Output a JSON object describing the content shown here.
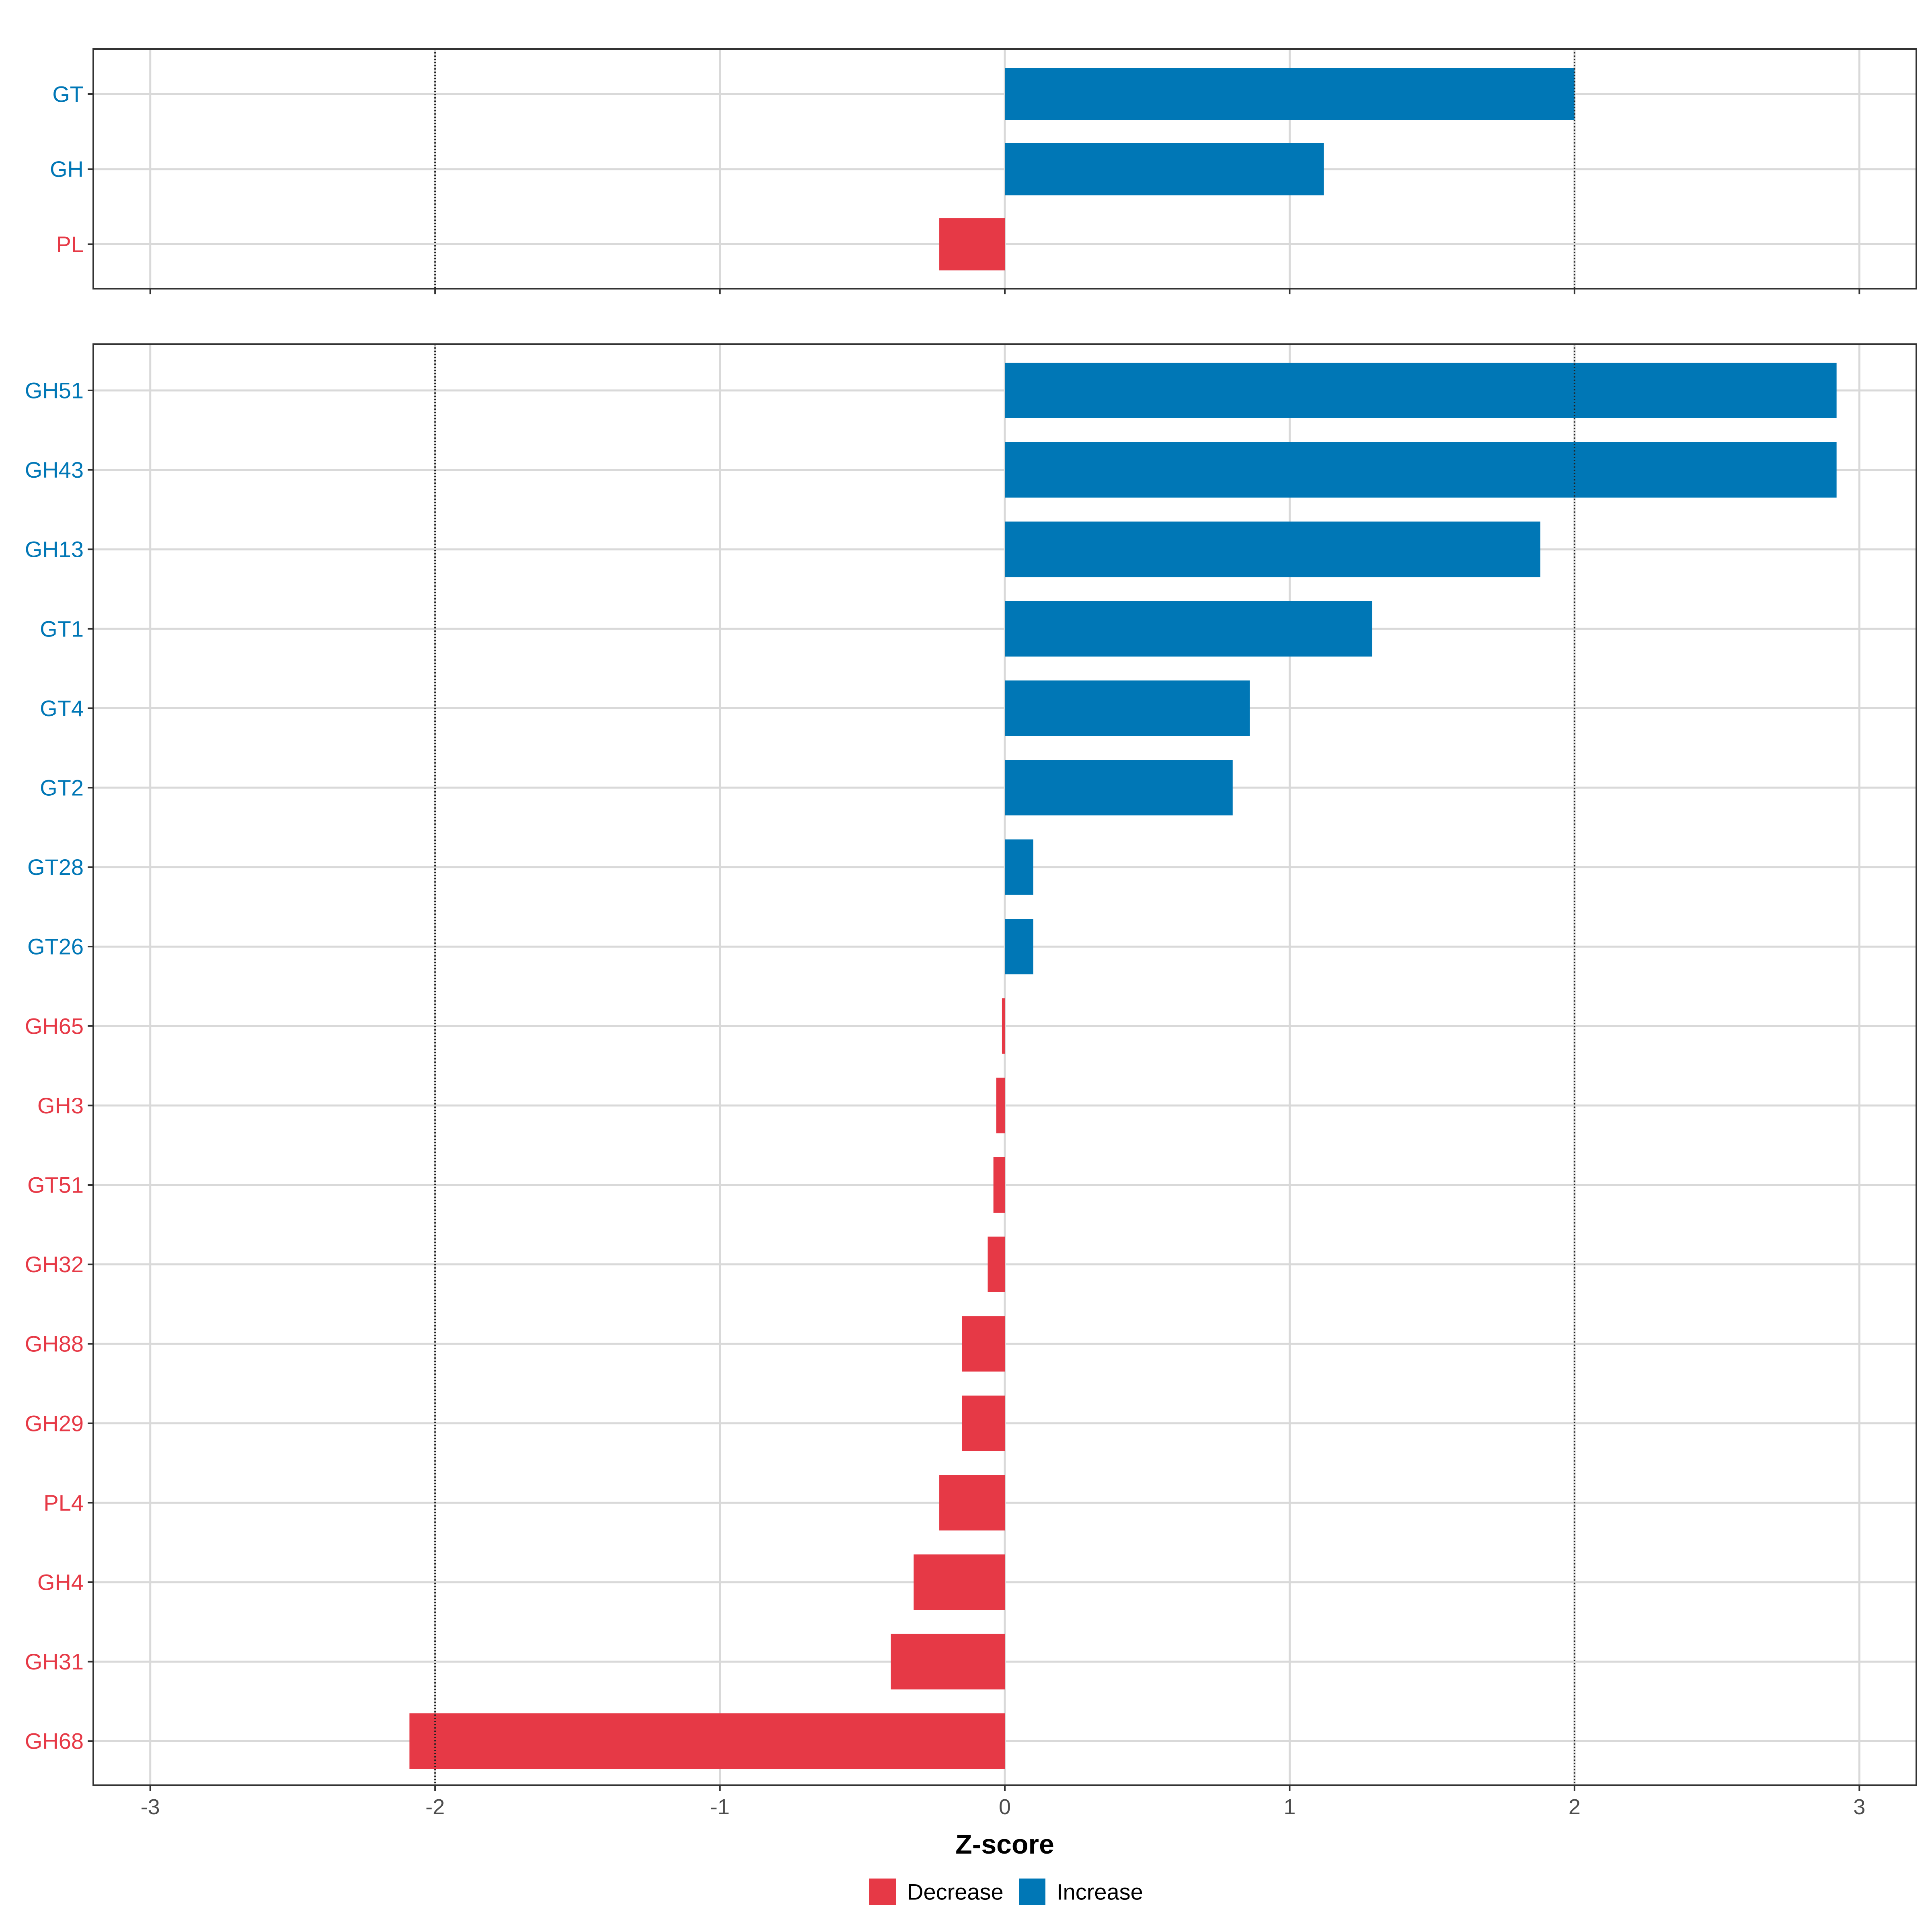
{
  "chart_data": {
    "type": "bar",
    "orientation": "horizontal",
    "xlabel": "Z-score",
    "xlim": [
      -3.2,
      3.2
    ],
    "xticks": [
      -3,
      -2,
      -1,
      0,
      1,
      2,
      3
    ],
    "xtick_labels": [
      "-3",
      "-2",
      "-1",
      "0",
      "1",
      "2",
      "3"
    ],
    "reference_lines": [
      -2,
      2
    ],
    "grid": true,
    "legend": {
      "placement": "bottom",
      "entries": [
        {
          "label": "Decrease",
          "color": "#E63946"
        },
        {
          "label": "Increase",
          "color": "#0077B6"
        }
      ]
    },
    "panels": [
      {
        "categories": [
          "GT",
          "GH",
          "PL"
        ],
        "values": [
          2.0,
          1.12,
          -0.23
        ],
        "direction": [
          "Increase",
          "Increase",
          "Decrease"
        ]
      },
      {
        "categories": [
          "GH51",
          "GH43",
          "GH13",
          "GT1",
          "GT4",
          "GT2",
          "GT28",
          "GT26",
          "GH65",
          "GH3",
          "GT51",
          "GH32",
          "GH88",
          "GH29",
          "PL4",
          "GH4",
          "GH31",
          "GH68"
        ],
        "values": [
          2.92,
          2.92,
          1.88,
          1.29,
          0.86,
          0.8,
          0.1,
          0.1,
          -0.01,
          -0.03,
          -0.04,
          -0.06,
          -0.15,
          -0.15,
          -0.23,
          -0.32,
          -0.4,
          -2.09
        ],
        "direction": [
          "Increase",
          "Increase",
          "Increase",
          "Increase",
          "Increase",
          "Increase",
          "Increase",
          "Increase",
          "Decrease",
          "Decrease",
          "Decrease",
          "Decrease",
          "Decrease",
          "Decrease",
          "Decrease",
          "Decrease",
          "Decrease",
          "Decrease"
        ]
      }
    ]
  }
}
